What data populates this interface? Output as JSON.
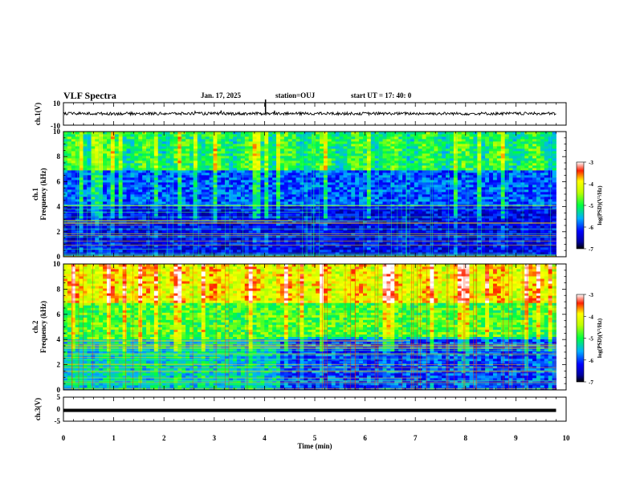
{
  "header": {
    "title": "VLF Spectra",
    "date": "Jan. 17, 2025",
    "station": "station=OUJ",
    "start_ut": "start UT =  17: 40: 0"
  },
  "chart_data": [
    {
      "type": "line",
      "panel": "ch1-waveform",
      "ylabel": "ch.1(V)",
      "ylim": [
        -10,
        10
      ],
      "yticklabels": [
        "10",
        "-10"
      ],
      "description_level": "trace near 0 V with small spikes",
      "x_range": [
        0,
        9.8
      ]
    },
    {
      "type": "heatmap",
      "panel": "ch1-spectrogram",
      "ylabel": "ch.1",
      "ylabel2": "Frequency  (kHz)",
      "ylim": [
        0,
        10
      ],
      "yticks": [
        0,
        2,
        4,
        6,
        8,
        10
      ],
      "x_range": [
        0,
        9.8
      ],
      "colorbar": {
        "label": "log(PSD)(V²/Hz)",
        "range": [
          -7,
          -3
        ],
        "ticks": [
          "-3",
          "-4",
          "-5",
          "-6",
          "-7"
        ]
      },
      "dominant_log_psd": {
        "0-4kHz": -6.3,
        "4-7kHz": -5.9,
        "7-10kHz": -5.0
      }
    },
    {
      "type": "heatmap",
      "panel": "ch2-spectrogram",
      "ylabel": "ch.2",
      "ylabel2": "Frequency  (kHz)",
      "ylim": [
        0,
        10
      ],
      "yticks": [
        0,
        2,
        4,
        6,
        8,
        10
      ],
      "x_range": [
        0,
        9.8
      ],
      "colorbar": {
        "label": "log(PSD)(V²/Hz)",
        "range": [
          -7,
          -3
        ],
        "ticks": [
          "-3",
          "-4",
          "-5",
          "-6",
          "-7"
        ]
      },
      "dominant_log_psd": {
        "0-4kHz": -5.4,
        "4-7kHz": -4.8,
        "7-10kHz": -4.0
      }
    },
    {
      "type": "line",
      "panel": "ch3-waveform",
      "ylabel": "ch.3(V)",
      "ylim": [
        -5,
        5
      ],
      "yticklabels": [
        "5",
        "0",
        "-5"
      ],
      "level": -0.5,
      "x_range": [
        0,
        9.8
      ]
    }
  ],
  "xaxis": {
    "label": "Time  (min)",
    "ticks": [
      "0",
      "1",
      "2",
      "3",
      "4",
      "5",
      "6",
      "7",
      "8",
      "9",
      "10"
    ],
    "range": [
      0,
      10
    ]
  }
}
